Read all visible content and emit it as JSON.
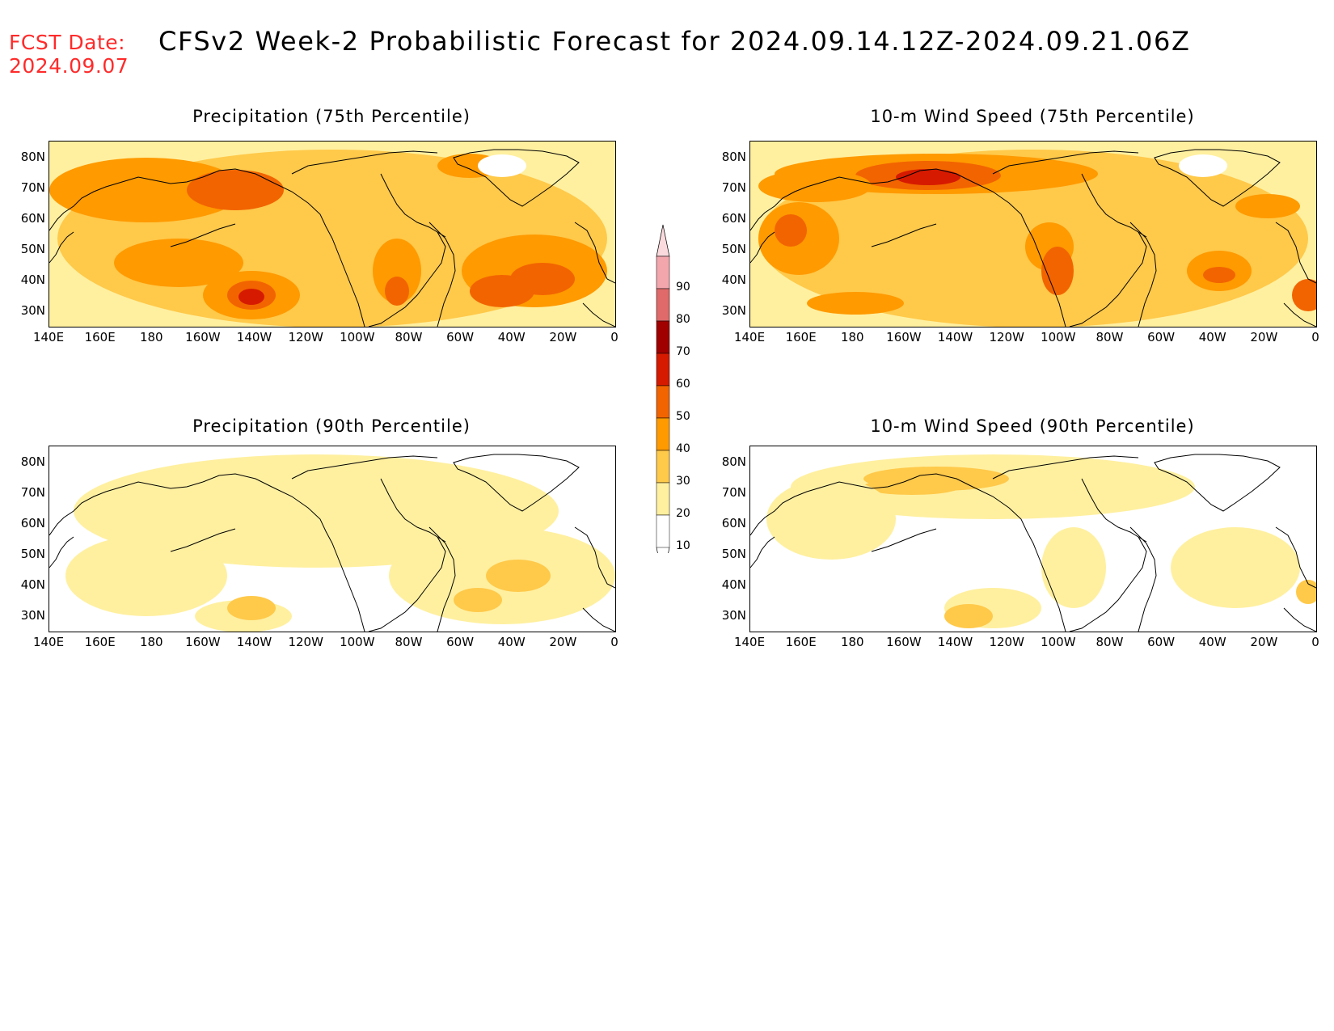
{
  "fcst": {
    "label": "FCST Date:",
    "date": "2024.09.07"
  },
  "title": "CFSv2 Week-2 Probabilistic Forecast for 2024.09.14.12Z-2024.09.21.06Z",
  "axes": {
    "lat_labels": [
      "80N",
      "70N",
      "60N",
      "50N",
      "40N",
      "30N"
    ],
    "lon_labels": [
      "140E",
      "160E",
      "180",
      "160W",
      "140W",
      "120W",
      "100W",
      "80W",
      "60W",
      "40W",
      "20W",
      "0"
    ]
  },
  "panels": [
    {
      "title": "Precipitation (75th Percentile)",
      "intensity": 0.75
    },
    {
      "title": "10-m Wind Speed (75th Percentile)",
      "intensity": 0.75
    },
    {
      "title": "Precipitation (90th Percentile)",
      "intensity": 0.25
    },
    {
      "title": "10-m Wind Speed (90th Percentile)",
      "intensity": 0.25
    }
  ],
  "colorbar": {
    "levels": [
      "90",
      "80",
      "70",
      "60",
      "50",
      "40",
      "30",
      "20",
      "10"
    ],
    "colors": [
      "#f4a6ad",
      "#e06a6a",
      "#a00000",
      "#d61a00",
      "#f26400",
      "#ff9a00",
      "#ffc94a",
      "#fff0a0",
      "#ffffff"
    ]
  }
}
